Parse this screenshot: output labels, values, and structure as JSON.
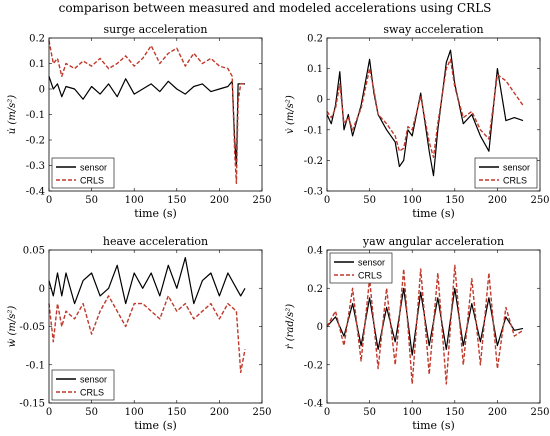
{
  "figure": {
    "suptitle": "comparison between measured and modeled accelerations using CRLS"
  },
  "chart_data": [
    {
      "type": "line",
      "title": "surge acceleration",
      "xlabel": "time (s)",
      "ylabel": "u̇ (m/s²)",
      "xlim": [
        0,
        250
      ],
      "ylim": [
        -0.4,
        0.2
      ],
      "xticks": [
        0,
        50,
        100,
        150,
        200,
        250
      ],
      "yticks": [
        -0.4,
        -0.3,
        -0.2,
        -0.1,
        0,
        0.1,
        0.2
      ],
      "ytick_labels": [
        "-0.4",
        "-0.3",
        "-0.2",
        "-0.1",
        "0",
        "0.1",
        "0.2"
      ],
      "legend": "bottom-left",
      "grid": false,
      "series": [
        {
          "name": "sensor",
          "color": "#000000",
          "style": "solid",
          "x": [
            0,
            5,
            10,
            15,
            20,
            30,
            40,
            50,
            60,
            70,
            80,
            90,
            100,
            110,
            120,
            130,
            140,
            150,
            160,
            170,
            180,
            190,
            200,
            210,
            215,
            218,
            220,
            222,
            225,
            230
          ],
          "y": [
            0.05,
            0.0,
            0.02,
            -0.03,
            0.01,
            0.0,
            -0.04,
            0.01,
            -0.02,
            0.02,
            -0.03,
            0.04,
            -0.02,
            0.0,
            0.02,
            -0.01,
            0.03,
            0.0,
            -0.02,
            0.01,
            0.02,
            -0.01,
            0.0,
            0.01,
            0.03,
            -0.2,
            -0.3,
            0.02,
            0.02,
            0.02
          ]
        },
        {
          "name": "CRLS",
          "color": "#c0392b",
          "style": "dashed",
          "x": [
            0,
            5,
            10,
            15,
            20,
            30,
            40,
            50,
            60,
            70,
            80,
            90,
            100,
            110,
            120,
            130,
            140,
            150,
            160,
            170,
            180,
            190,
            200,
            210,
            215,
            218,
            220,
            222,
            225,
            230
          ],
          "y": [
            0.19,
            0.1,
            0.12,
            0.05,
            0.1,
            0.08,
            0.11,
            0.09,
            0.12,
            0.08,
            0.1,
            0.13,
            0.09,
            0.12,
            0.17,
            0.1,
            0.14,
            0.16,
            0.09,
            0.14,
            0.1,
            0.12,
            0.09,
            0.08,
            0.05,
            -0.25,
            -0.37,
            -0.05,
            0.02,
            0.02
          ]
        }
      ]
    },
    {
      "type": "line",
      "title": "sway acceleration",
      "xlabel": "time (s)",
      "ylabel": "v̇ (m/s²)",
      "xlim": [
        0,
        250
      ],
      "ylim": [
        -0.3,
        0.2
      ],
      "xticks": [
        0,
        50,
        100,
        150,
        200,
        250
      ],
      "yticks": [
        -0.3,
        -0.2,
        -0.1,
        0,
        0.1,
        0.2
      ],
      "ytick_labels": [
        "-0.3",
        "-0.2",
        "-0.1",
        "0",
        "0.1",
        "0.2"
      ],
      "legend": "bottom-right",
      "grid": false,
      "series": [
        {
          "name": "sensor",
          "color": "#000000",
          "style": "solid",
          "x": [
            0,
            5,
            10,
            15,
            20,
            25,
            30,
            40,
            50,
            55,
            60,
            70,
            80,
            85,
            90,
            95,
            100,
            110,
            120,
            125,
            130,
            140,
            145,
            150,
            160,
            170,
            180,
            190,
            200,
            210,
            220,
            230
          ],
          "y": [
            -0.05,
            -0.08,
            -0.02,
            0.09,
            -0.1,
            -0.05,
            -0.12,
            -0.02,
            0.13,
            0.02,
            -0.05,
            -0.1,
            -0.14,
            -0.22,
            -0.2,
            -0.1,
            -0.12,
            0.02,
            -0.17,
            -0.25,
            -0.1,
            0.12,
            0.16,
            0.05,
            -0.08,
            -0.05,
            -0.12,
            -0.17,
            0.1,
            -0.07,
            -0.06,
            -0.07
          ]
        },
        {
          "name": "CRLS",
          "color": "#c0392b",
          "style": "dashed",
          "x": [
            0,
            5,
            10,
            15,
            20,
            25,
            30,
            40,
            50,
            55,
            60,
            70,
            80,
            85,
            90,
            95,
            100,
            110,
            120,
            125,
            130,
            140,
            145,
            150,
            160,
            170,
            180,
            190,
            200,
            210,
            220,
            230
          ],
          "y": [
            -0.04,
            -0.06,
            -0.03,
            0.05,
            -0.08,
            -0.06,
            -0.1,
            -0.03,
            0.1,
            0.03,
            -0.05,
            -0.08,
            -0.12,
            -0.17,
            -0.16,
            -0.09,
            -0.1,
            0.01,
            -0.14,
            -0.19,
            -0.08,
            0.1,
            0.13,
            0.04,
            -0.06,
            -0.04,
            -0.1,
            -0.13,
            0.08,
            0.06,
            0.02,
            -0.02
          ]
        }
      ]
    },
    {
      "type": "line",
      "title": "heave acceleration",
      "xlabel": "time (s)",
      "ylabel": "ẇ (m/s²)",
      "xlim": [
        0,
        250
      ],
      "ylim": [
        -0.15,
        0.05
      ],
      "xticks": [
        0,
        50,
        100,
        150,
        200,
        250
      ],
      "yticks": [
        -0.15,
        -0.1,
        -0.05,
        0,
        0.05
      ],
      "ytick_labels": [
        "-0.15",
        "-0.1",
        "-0.05",
        "0",
        "0.05"
      ],
      "legend": "bottom-left",
      "grid": false,
      "series": [
        {
          "name": "sensor",
          "color": "#000000",
          "style": "solid",
          "x": [
            0,
            5,
            10,
            15,
            20,
            30,
            40,
            50,
            60,
            70,
            80,
            90,
            100,
            110,
            120,
            130,
            140,
            150,
            160,
            170,
            180,
            190,
            200,
            210,
            220,
            225,
            230
          ],
          "y": [
            0.01,
            -0.01,
            0.02,
            -0.01,
            0.02,
            -0.02,
            0.01,
            0.02,
            -0.01,
            0.0,
            0.03,
            -0.02,
            0.02,
            0.0,
            0.02,
            -0.01,
            0.03,
            0.0,
            0.04,
            -0.02,
            0.01,
            0.02,
            -0.01,
            0.02,
            0.0,
            -0.01,
            0.0
          ]
        },
        {
          "name": "CRLS",
          "color": "#c0392b",
          "style": "dashed",
          "x": [
            0,
            5,
            10,
            15,
            20,
            30,
            40,
            50,
            60,
            70,
            80,
            90,
            100,
            110,
            120,
            130,
            140,
            150,
            160,
            170,
            180,
            190,
            200,
            210,
            220,
            225,
            230
          ],
          "y": [
            -0.02,
            -0.07,
            -0.02,
            -0.05,
            -0.03,
            -0.04,
            -0.02,
            -0.06,
            -0.03,
            -0.01,
            -0.03,
            -0.05,
            -0.02,
            -0.02,
            -0.03,
            -0.04,
            -0.01,
            -0.03,
            -0.02,
            -0.04,
            -0.03,
            -0.02,
            -0.04,
            -0.02,
            -0.03,
            -0.11,
            -0.08
          ]
        }
      ]
    },
    {
      "type": "line",
      "title": "yaw angular acceleration",
      "xlabel": "time (s)",
      "ylabel": "ṙ (rad/s²)",
      "xlim": [
        0,
        250
      ],
      "ylim": [
        -0.4,
        0.4
      ],
      "xticks": [
        0,
        50,
        100,
        150,
        200,
        250
      ],
      "yticks": [
        -0.4,
        -0.2,
        0,
        0.2,
        0.4
      ],
      "ytick_labels": [
        "-0.4",
        "-0.2",
        "0",
        "0.2",
        "0.4"
      ],
      "legend": "top-left",
      "grid": false,
      "series": [
        {
          "name": "sensor",
          "color": "#000000",
          "style": "solid",
          "x": [
            0,
            10,
            20,
            30,
            40,
            50,
            60,
            70,
            80,
            90,
            100,
            110,
            120,
            130,
            140,
            150,
            160,
            170,
            180,
            190,
            200,
            210,
            220,
            230
          ],
          "y": [
            0.0,
            0.05,
            -0.05,
            0.12,
            -0.1,
            0.15,
            -0.12,
            0.1,
            -0.08,
            0.2,
            -0.15,
            0.18,
            -0.1,
            0.15,
            -0.12,
            0.2,
            -0.1,
            0.12,
            -0.08,
            0.15,
            -0.1,
            0.05,
            -0.02,
            -0.01
          ]
        },
        {
          "name": "CRLS",
          "color": "#c0392b",
          "style": "dashed",
          "x": [
            0,
            10,
            20,
            30,
            40,
            50,
            60,
            70,
            80,
            90,
            100,
            110,
            120,
            130,
            140,
            150,
            160,
            170,
            180,
            190,
            200,
            210,
            220,
            230
          ],
          "y": [
            0.0,
            0.08,
            -0.1,
            0.2,
            -0.18,
            0.25,
            -0.22,
            0.2,
            -0.2,
            0.3,
            -0.3,
            0.3,
            -0.25,
            0.28,
            -0.3,
            0.32,
            -0.2,
            0.25,
            -0.2,
            0.28,
            -0.22,
            0.1,
            -0.05,
            -0.02
          ]
        }
      ]
    }
  ]
}
